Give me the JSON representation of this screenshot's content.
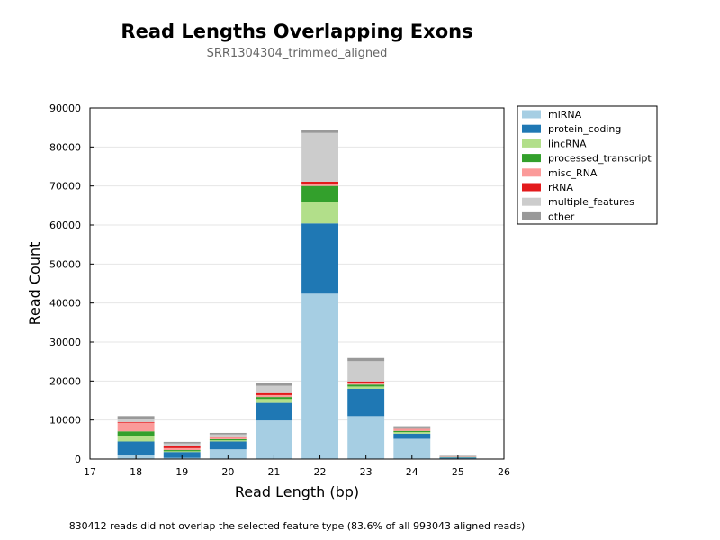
{
  "chart_data": {
    "type": "bar",
    "stacked": true,
    "title": "Read Lengths Overlapping Exons",
    "subtitle": "SRR1304304_trimmed_aligned",
    "xlabel": "Read Length (bp)",
    "ylabel": "Read Count",
    "xlim": [
      17,
      26
    ],
    "ylim": [
      0,
      90000
    ],
    "x_ticks": [
      "17",
      "18",
      "19",
      "20",
      "21",
      "22",
      "23",
      "24",
      "25",
      "26"
    ],
    "y_ticks": [
      "0",
      "10000",
      "20000",
      "30000",
      "40000",
      "50000",
      "60000",
      "70000",
      "80000",
      "90000"
    ],
    "grid": "horizontal",
    "legend_position": "outside-top-right",
    "categories": [
      18,
      19,
      20,
      21,
      22,
      23,
      24,
      25
    ],
    "series": [
      {
        "name": "miRNA",
        "color": "#a6cee3",
        "values": [
          1100,
          300,
          2500,
          9900,
          42400,
          11000,
          5200,
          150
        ]
      },
      {
        "name": "protein_coding",
        "color": "#1f78b4",
        "values": [
          3400,
          1500,
          2000,
          4500,
          18000,
          7000,
          1300,
          250
        ]
      },
      {
        "name": "lincRNA",
        "color": "#b2df8a",
        "values": [
          1500,
          200,
          300,
          1000,
          5600,
          600,
          400,
          50
        ]
      },
      {
        "name": "processed_transcript",
        "color": "#33a02c",
        "values": [
          1100,
          300,
          300,
          500,
          4000,
          500,
          300,
          50
        ]
      },
      {
        "name": "misc_RNA",
        "color": "#fb9a99",
        "values": [
          2200,
          500,
          400,
          500,
          500,
          500,
          400,
          50
        ]
      },
      {
        "name": "rRNA",
        "color": "#e31a1c",
        "values": [
          200,
          500,
          300,
          500,
          600,
          300,
          100,
          50
        ]
      },
      {
        "name": "multiple_features",
        "color": "#cccccc",
        "values": [
          800,
          700,
          500,
          1900,
          12500,
          5200,
          400,
          300
        ]
      },
      {
        "name": "other",
        "color": "#999999",
        "values": [
          700,
          400,
          400,
          800,
          800,
          800,
          300,
          150
        ]
      }
    ]
  },
  "footnote": "830412 reads did not overlap the selected feature type (83.6% of all 993043 aligned reads)"
}
